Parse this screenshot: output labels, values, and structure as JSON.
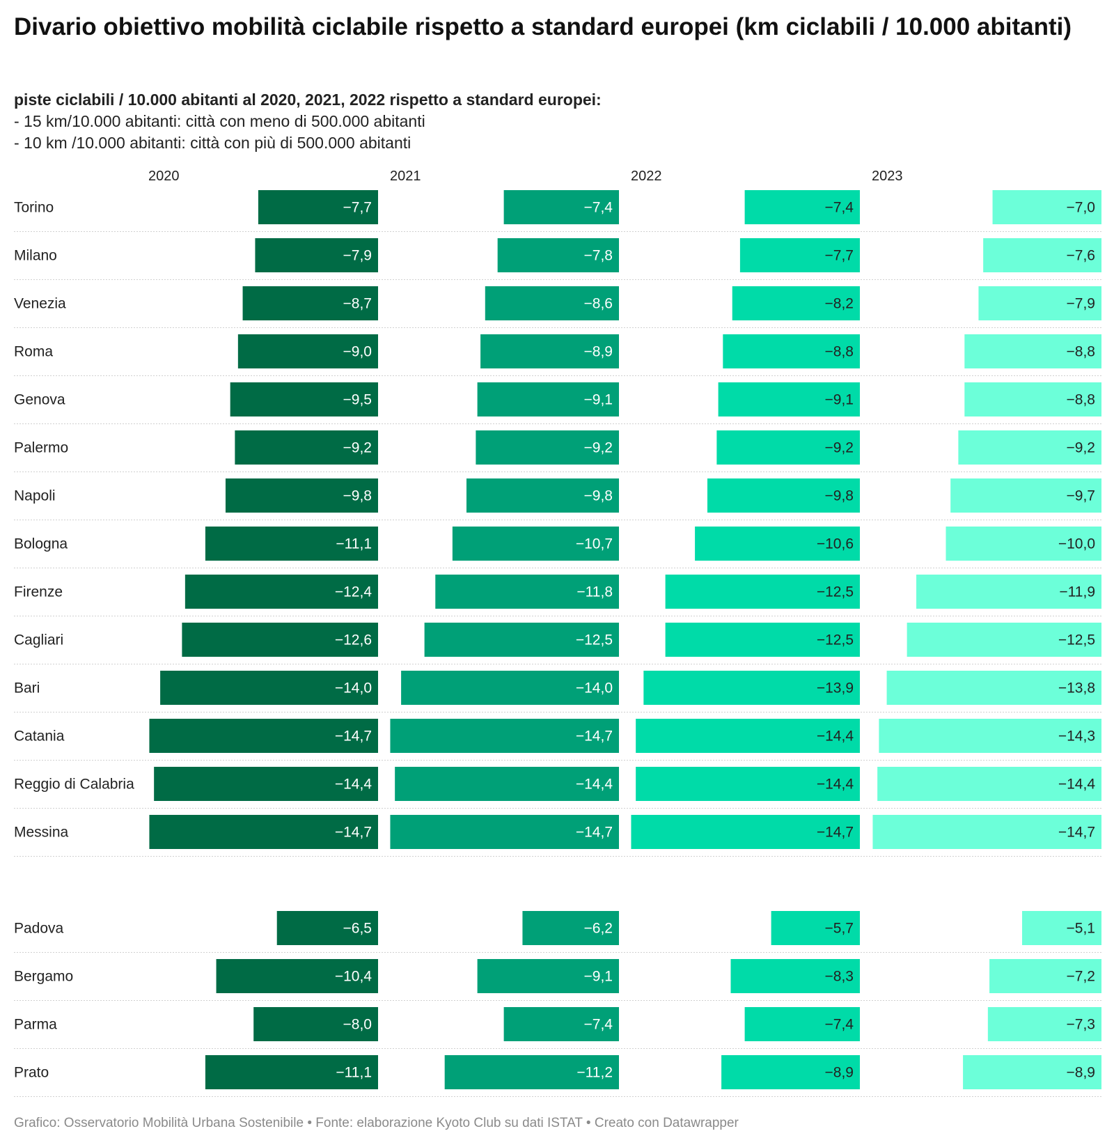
{
  "title": "Divario obiettivo mobilità ciclabile rispetto a standard europei (km ciclabili / 10.000 abitanti)",
  "subtitle": {
    "bold": "piste ciclabili / 10.000 abitanti al 2020, 2021, 2022 rispetto a standard europei:",
    "lines": [
      "- 15 km/10.000 abitanti: città con meno di 500.000 abitanti",
      "- 10 km /10.000 abitanti: città con più di 500.000 abitanti"
    ]
  },
  "notes": "Grafico: Osservatorio Mobilità Urbana Sostenibile • Fonte: elaborazione Kyoto Club su dati ISTAT • Creato con Datawrapper",
  "colors": {
    "2020": "#006b45",
    "2021": "#00a077",
    "2022": "#00dba8",
    "2023": "#6cffd9",
    "label_dark": "#ffffff",
    "label_light": "#222222",
    "separator": "#d0d0d0"
  },
  "chart_data": {
    "type": "bar",
    "layout": "small-multiples-columns",
    "columns": [
      "2020",
      "2021",
      "2022",
      "2023"
    ],
    "groups": [
      {
        "rows": [
          {
            "city": "Torino",
            "values": [
              -7.7,
              -7.4,
              -7.4,
              -7.0
            ],
            "labels": [
              "−7,7",
              "−7,4",
              "−7,4",
              "−7,0"
            ]
          },
          {
            "city": "Milano",
            "values": [
              -7.9,
              -7.8,
              -7.7,
              -7.6
            ],
            "labels": [
              "−7,9",
              "−7,8",
              "−7,7",
              "−7,6"
            ]
          },
          {
            "city": "Venezia",
            "values": [
              -8.7,
              -8.6,
              -8.2,
              -7.9
            ],
            "labels": [
              "−8,7",
              "−8,6",
              "−8,2",
              "−7,9"
            ]
          },
          {
            "city": "Roma",
            "values": [
              -9.0,
              -8.9,
              -8.8,
              -8.8
            ],
            "labels": [
              "−9,0",
              "−8,9",
              "−8,8",
              "−8,8"
            ]
          },
          {
            "city": "Genova",
            "values": [
              -9.5,
              -9.1,
              -9.1,
              -8.8
            ],
            "labels": [
              "−9,5",
              "−9,1",
              "−9,1",
              "−8,8"
            ]
          },
          {
            "city": "Palermo",
            "values": [
              -9.2,
              -9.2,
              -9.2,
              -9.2
            ],
            "labels": [
              "−9,2",
              "−9,2",
              "−9,2",
              "−9,2"
            ]
          },
          {
            "city": "Napoli",
            "values": [
              -9.8,
              -9.8,
              -9.8,
              -9.7
            ],
            "labels": [
              "−9,8",
              "−9,8",
              "−9,8",
              "−9,7"
            ]
          },
          {
            "city": "Bologna",
            "values": [
              -11.1,
              -10.7,
              -10.6,
              -10.0
            ],
            "labels": [
              "−11,1",
              "−10,7",
              "−10,6",
              "−10,0"
            ]
          },
          {
            "city": "Firenze",
            "values": [
              -12.4,
              -11.8,
              -12.5,
              -11.9
            ],
            "labels": [
              "−12,4",
              "−11,8",
              "−12,5",
              "−11,9"
            ]
          },
          {
            "city": "Cagliari",
            "values": [
              -12.6,
              -12.5,
              -12.5,
              -12.5
            ],
            "labels": [
              "−12,6",
              "−12,5",
              "−12,5",
              "−12,5"
            ]
          },
          {
            "city": "Bari",
            "values": [
              -14.0,
              -14.0,
              -13.9,
              -13.8
            ],
            "labels": [
              "−14,0",
              "−14,0",
              "−13,9",
              "−13,8"
            ]
          },
          {
            "city": "Catania",
            "values": [
              -14.7,
              -14.7,
              -14.4,
              -14.3
            ],
            "labels": [
              "−14,7",
              "−14,7",
              "−14,4",
              "−14,3"
            ]
          },
          {
            "city": "Reggio di Calabria",
            "values": [
              -14.4,
              -14.4,
              -14.4,
              -14.4
            ],
            "labels": [
              "−14,4",
              "−14,4",
              "−14,4",
              "−14,4"
            ]
          },
          {
            "city": "Messina",
            "values": [
              -14.7,
              -14.7,
              -14.7,
              -14.7
            ],
            "labels": [
              "−14,7",
              "−14,7",
              "−14,7",
              "−14,7"
            ]
          }
        ]
      },
      {
        "rows": [
          {
            "city": "Padova",
            "values": [
              -6.5,
              -6.2,
              -5.7,
              -5.1
            ],
            "labels": [
              "−6,5",
              "−6,2",
              "−5,7",
              "−5,1"
            ]
          },
          {
            "city": "Bergamo",
            "values": [
              -10.4,
              -9.1,
              -8.3,
              -7.2
            ],
            "labels": [
              "−10,4",
              "−9,1",
              "−8,3",
              "−7,2"
            ]
          },
          {
            "city": "Parma",
            "values": [
              -8.0,
              -7.4,
              -7.4,
              -7.3
            ],
            "labels": [
              "−8,0",
              "−7,4",
              "−7,4",
              "−7,3"
            ]
          },
          {
            "city": "Prato",
            "values": [
              -11.1,
              -11.2,
              -8.9,
              -8.9
            ],
            "labels": [
              "−11,1",
              "−11,2",
              "−8,9",
              "−8,9"
            ]
          }
        ]
      }
    ],
    "xlim": [
      -15,
      0
    ],
    "grid": false,
    "legend": "column headers"
  }
}
